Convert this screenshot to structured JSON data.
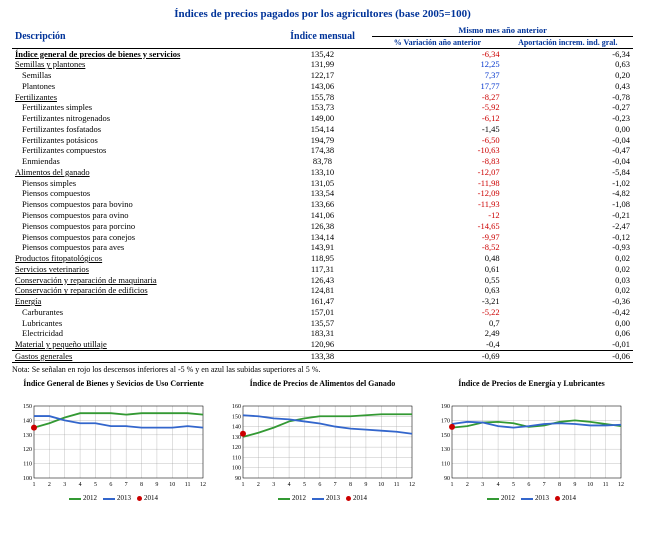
{
  "title": "Índices de precios pagados por los agricultores (base 2005=100)",
  "headers": {
    "desc": "Descripción",
    "idx": "Índice mensual",
    "group": "Mismo mes año anterior",
    "var": "% Variación año anterior",
    "apo": "Aportación increm. ind. gral."
  },
  "note": "Nota:  Se señalan en rojo los descensos inferiores al -5 % y en azul las subidas superiores al 5 %.",
  "rows": [
    {
      "d": "Índice general de precios de bienes y servicios",
      "i": "135,42",
      "v": "-6,34",
      "a": "-6,34",
      "cls": "bold-row",
      "vc": "neg-red"
    },
    {
      "d": "Semillas y plantones",
      "i": "131,99",
      "v": "12,25",
      "a": "0,63",
      "cls": "section-row",
      "vc": "pos-blue"
    },
    {
      "d": "Semillas",
      "i": "122,17",
      "v": "7,37",
      "a": "0,20",
      "cls": "indent",
      "vc": "pos-blue"
    },
    {
      "d": "Plantones",
      "i": "143,06",
      "v": "17,77",
      "a": "0,43",
      "cls": "indent",
      "vc": "pos-blue"
    },
    {
      "d": "Fertilizantes",
      "i": "155,78",
      "v": "-8,27",
      "a": "-0,78",
      "cls": "section-row",
      "vc": "neg-red"
    },
    {
      "d": "Fertilizantes simples",
      "i": "153,73",
      "v": "-5,92",
      "a": "-0,27",
      "cls": "indent",
      "vc": "neg-red"
    },
    {
      "d": "Fertilizantes nitrogenados",
      "i": "149,00",
      "v": "-6,12",
      "a": "-0,23",
      "cls": "indent",
      "vc": "neg-red"
    },
    {
      "d": "Fertilizantes fosfatados",
      "i": "154,14",
      "v": "-1,45",
      "a": "0,00",
      "cls": "indent"
    },
    {
      "d": "Fertilizantes potásicos",
      "i": "194,79",
      "v": "-6,50",
      "a": "-0,04",
      "cls": "indent",
      "vc": "neg-red"
    },
    {
      "d": "Fertilizantes compuestos",
      "i": "174,38",
      "v": "-10,63",
      "a": "-0,47",
      "cls": "indent",
      "vc": "neg-red"
    },
    {
      "d": "Enmiendas",
      "i": "83,78",
      "v": "-8,83",
      "a": "-0,04",
      "cls": "indent",
      "vc": "neg-red"
    },
    {
      "d": "Alimentos del ganado",
      "i": "133,10",
      "v": "-12,07",
      "a": "-5,84",
      "cls": "section-row",
      "vc": "neg-red"
    },
    {
      "d": "Piensos simples",
      "i": "131,05",
      "v": "-11,98",
      "a": "-1,02",
      "cls": "indent",
      "vc": "neg-red"
    },
    {
      "d": "Piensos compuestos",
      "i": "133,54",
      "v": "-12,09",
      "a": "-4,82",
      "cls": "indent",
      "vc": "neg-red"
    },
    {
      "d": "Piensos compuestos para bovino",
      "i": "133,66",
      "v": "-11,93",
      "a": "-1,08",
      "cls": "indent",
      "vc": "neg-red"
    },
    {
      "d": "Piensos compuestos para ovino",
      "i": "141,06",
      "v": "-12",
      "a": "-0,21",
      "cls": "indent",
      "vc": "neg-red"
    },
    {
      "d": "Piensos compuestos para porcino",
      "i": "126,38",
      "v": "-14,65",
      "a": "-2,47",
      "cls": "indent",
      "vc": "neg-red"
    },
    {
      "d": "Piensos compuestos para conejos",
      "i": "134,14",
      "v": "-9,97",
      "a": "-0,12",
      "cls": "indent",
      "vc": "neg-red"
    },
    {
      "d": "Piensos compuestos para aves",
      "i": "143,91",
      "v": "-8,52",
      "a": "-0,93",
      "cls": "indent",
      "vc": "neg-red"
    },
    {
      "d": "Productos fitopatológicos",
      "i": "118,95",
      "v": "0,48",
      "a": "0,02",
      "cls": "section-row"
    },
    {
      "d": "Servicios veterinarios",
      "i": "117,31",
      "v": "0,61",
      "a": "0,02",
      "cls": "section-row"
    },
    {
      "d": "Conservación y reparación de maquinaria",
      "i": "126,43",
      "v": "0,55",
      "a": "0,03",
      "cls": "section-row"
    },
    {
      "d": "Conservación y reparación de edificios",
      "i": "124,81",
      "v": "0,63",
      "a": "0,02",
      "cls": "section-row"
    },
    {
      "d": "Energía",
      "i": "161,47",
      "v": "-3,21",
      "a": "-0,36",
      "cls": "section-row"
    },
    {
      "d": "Carburantes",
      "i": "157,01",
      "v": "-5,22",
      "a": "-0,42",
      "cls": "indent",
      "vc": "neg-red"
    },
    {
      "d": "Lubricantes",
      "i": "135,57",
      "v": "0,7",
      "a": "0,00",
      "cls": "indent"
    },
    {
      "d": "Electricidad",
      "i": "183,31",
      "v": "2,49",
      "a": "0,06",
      "cls": "indent"
    },
    {
      "d": "Material y pequeño utillaje",
      "i": "120,96",
      "v": "-0,4",
      "a": "-0,01",
      "cls": "section-row"
    },
    {
      "d": "Gastos generales",
      "i": "133,38",
      "v": "-0,69",
      "a": "-0,06",
      "cls": "section-row footer"
    }
  ],
  "charts": [
    {
      "title": "Índice General de Bienes y Sevicios de Uso Corriente",
      "ymin": 100,
      "ymax": 150,
      "ystep": 10,
      "g": [
        135,
        138,
        142,
        145,
        145,
        145,
        144,
        145,
        145,
        145,
        145,
        144
      ],
      "b": [
        143,
        143,
        140,
        138,
        138,
        136,
        136,
        135,
        135,
        135,
        136,
        135
      ],
      "r": [
        135
      ],
      "legend": [
        "2012",
        "2013",
        "2014"
      ]
    },
    {
      "title": "Índice de Precios de Alimentos del Ganado",
      "ymin": 90,
      "ymax": 160,
      "ystep": 10,
      "g": [
        130,
        134,
        139,
        145,
        148,
        150,
        150,
        150,
        151,
        152,
        152,
        152
      ],
      "b": [
        151,
        150,
        148,
        147,
        145,
        143,
        140,
        138,
        137,
        136,
        135,
        133
      ],
      "r": [
        133
      ],
      "legend": [
        "2012",
        "2013",
        "2014"
      ]
    },
    {
      "title": "Índice de Precios de Energía y Lubricantes",
      "ymin": 90,
      "ymax": 190,
      "ystep": 20,
      "g": [
        160,
        162,
        167,
        168,
        166,
        161,
        163,
        168,
        170,
        168,
        165,
        162
      ],
      "b": [
        165,
        168,
        167,
        162,
        160,
        162,
        165,
        166,
        165,
        163,
        163,
        164
      ],
      "r": [
        161
      ],
      "legend": [
        "2012",
        "2013",
        "2014"
      ]
    }
  ]
}
